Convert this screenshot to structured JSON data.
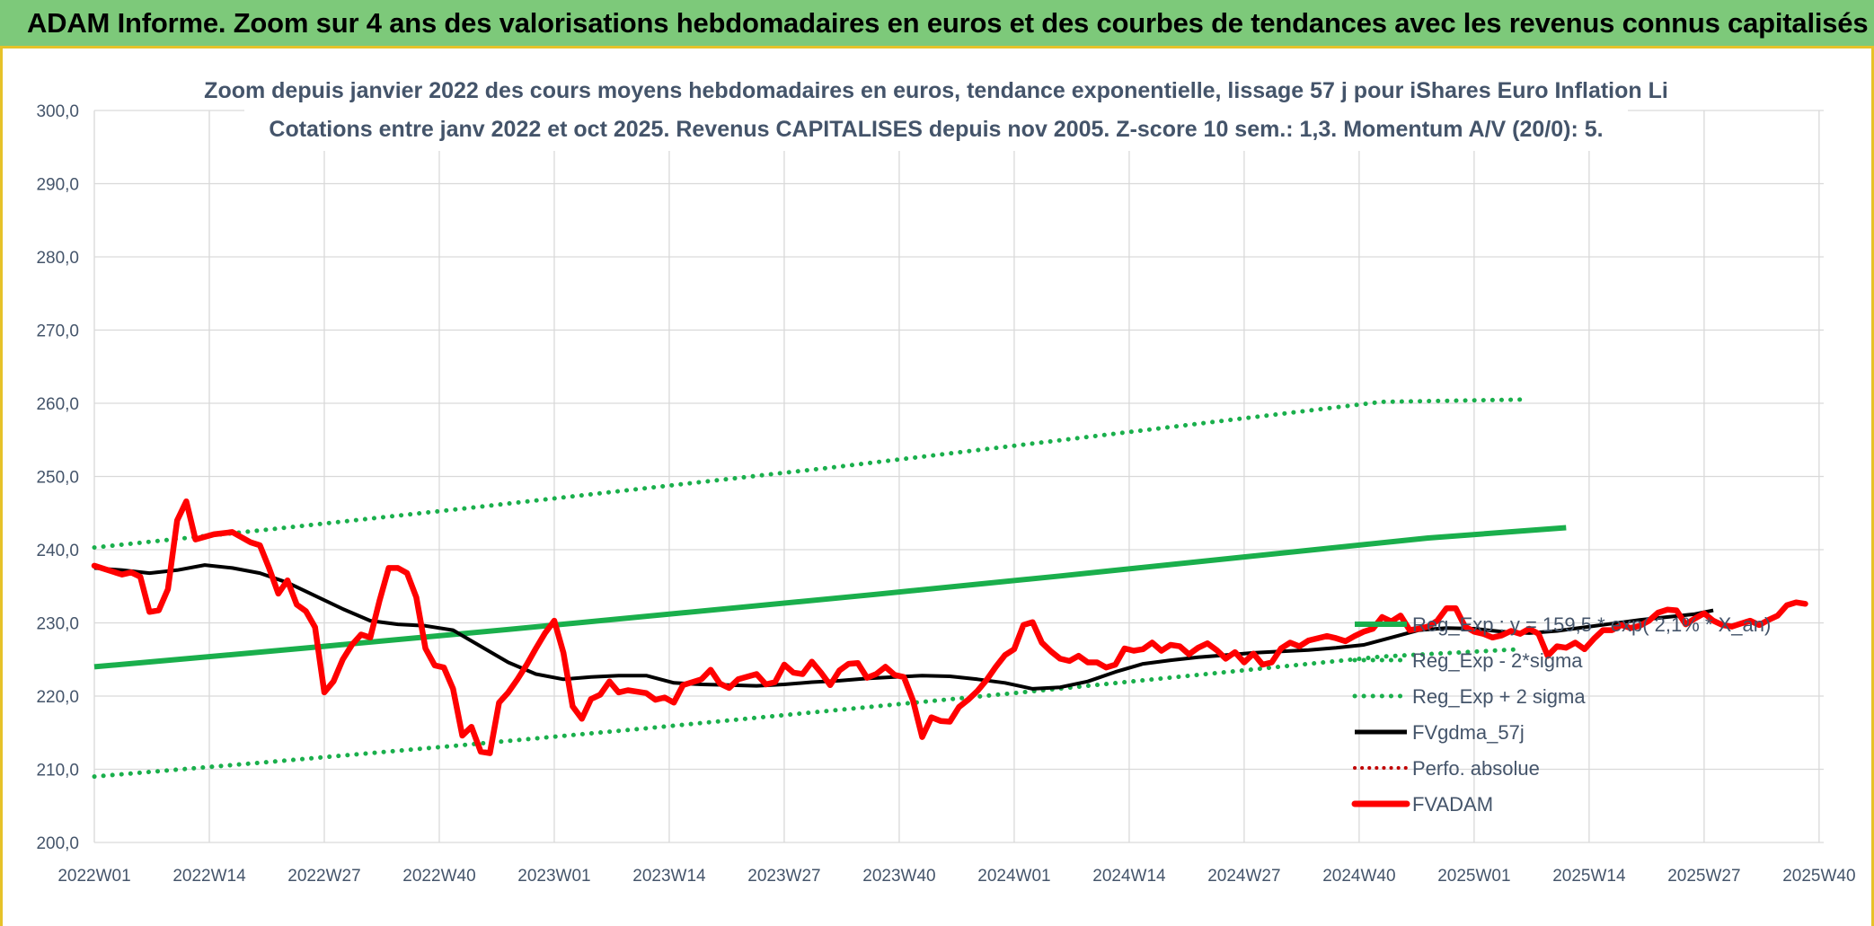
{
  "banner": {
    "title": "ADAM Informe. Zoom sur 4 ans des valorisations hebdomadaires en euros et des courbes de tendances avec les revenus connus capitalisés"
  },
  "colors": {
    "banner_bg": "#7dc97a",
    "frame": "#e6c229",
    "reg_exp": "#1aaf4c",
    "bands": "#1aaf4c",
    "mma": "#000000",
    "fvadam": "#ff0000",
    "perfo": "#c00000",
    "grid": "#d9d9d9",
    "text": "#44546a"
  },
  "chart_data": {
    "type": "line",
    "title": "Zoom depuis janvier 2022 des cours moyens hebdomadaires en euros, tendance exponentielle, lissage 57 j pour iShares Euro Inflation Li",
    "subtitle": "Cotations entre janv 2022 et oct 2025. Revenus CAPITALISES depuis nov 2005. Z-score 10 sem.: 1,3. Momentum A/V (20/0): 5.",
    "xlabel": "",
    "ylabel": "",
    "ylim": [
      200,
      300
    ],
    "yticks": [
      "300,0",
      "290,0",
      "280,0",
      "270,0",
      "260,0",
      "250,0",
      "240,0",
      "230,0",
      "220,0",
      "210,0",
      "200,0"
    ],
    "xticks": [
      "2022W01",
      "2022W14",
      "2022W27",
      "2022W40",
      "2023W01",
      "2023W14",
      "2023W27",
      "2023W40",
      "2024W01",
      "2024W14",
      "2024W27",
      "2024W40",
      "2025W01",
      "2025W14",
      "2025W27",
      "2025W40"
    ],
    "grid": true,
    "legend_position": "right",
    "legend": [
      "Reg_Exp : y = 159,5 * exp( 2,1% * X_an)",
      "Reg_Exp - 2*sigma",
      "Reg_Exp + 2 sigma",
      "FVgdma_57j",
      "Perfo. absolue",
      "FVADAM"
    ],
    "series": [
      {
        "name": "Reg_Exp : y = 159,5 * exp( 2,1% * X_an)",
        "style": "solid-thick",
        "points": [
          [
            0,
            224.0
          ],
          [
            10,
            225.1
          ],
          [
            25,
            226.8
          ],
          [
            45,
            229.1
          ],
          [
            65,
            231.5
          ],
          [
            85,
            233.9
          ],
          [
            105,
            236.4
          ],
          [
            125,
            239.0
          ],
          [
            145,
            241.6
          ],
          [
            160,
            243.0
          ]
        ]
      },
      {
        "name": "Reg_Exp - 2*sigma",
        "style": "dotted",
        "points": [
          [
            0,
            209.0
          ],
          [
            20,
            211.1
          ],
          [
            40,
            213.3
          ],
          [
            60,
            215.6
          ],
          [
            80,
            218.0
          ],
          [
            100,
            220.4
          ],
          [
            120,
            222.9
          ],
          [
            140,
            225.4
          ],
          [
            155,
            226.4
          ]
        ]
      },
      {
        "name": "Reg_Exp + 2 sigma",
        "style": "dotted",
        "points": [
          [
            0,
            240.3
          ],
          [
            20,
            242.9
          ],
          [
            40,
            245.6
          ],
          [
            60,
            248.4
          ],
          [
            80,
            251.2
          ],
          [
            100,
            254.2
          ],
          [
            120,
            257.2
          ],
          [
            140,
            260.2
          ],
          [
            155,
            260.5
          ]
        ]
      },
      {
        "name": "FVgdma_57j",
        "style": "solid",
        "points": [
          [
            0,
            237.5
          ],
          [
            3,
            237.2
          ],
          [
            6,
            236.8
          ],
          [
            9,
            237.2
          ],
          [
            12,
            237.9
          ],
          [
            15,
            237.5
          ],
          [
            18,
            236.8
          ],
          [
            21,
            235.5
          ],
          [
            24,
            233.7
          ],
          [
            27,
            231.9
          ],
          [
            30,
            230.3
          ],
          [
            33,
            229.8
          ],
          [
            36,
            229.6
          ],
          [
            39,
            229.0
          ],
          [
            42,
            226.8
          ],
          [
            45,
            224.6
          ],
          [
            48,
            223.0
          ],
          [
            51,
            222.3
          ],
          [
            54,
            222.6
          ],
          [
            57,
            222.8
          ],
          [
            60,
            222.8
          ],
          [
            63,
            221.8
          ],
          [
            66,
            221.6
          ],
          [
            69,
            221.5
          ],
          [
            72,
            221.4
          ],
          [
            75,
            221.6
          ],
          [
            78,
            221.9
          ],
          [
            81,
            222.1
          ],
          [
            84,
            222.4
          ],
          [
            87,
            222.6
          ],
          [
            90,
            222.8
          ],
          [
            93,
            222.7
          ],
          [
            96,
            222.3
          ],
          [
            99,
            221.8
          ],
          [
            102,
            221.0
          ],
          [
            105,
            221.2
          ],
          [
            108,
            222.0
          ],
          [
            111,
            223.3
          ],
          [
            114,
            224.4
          ],
          [
            117,
            224.9
          ],
          [
            120,
            225.3
          ],
          [
            123,
            225.6
          ],
          [
            126,
            225.9
          ],
          [
            129,
            226.1
          ],
          [
            132,
            226.3
          ],
          [
            135,
            226.6
          ],
          [
            138,
            227.0
          ],
          [
            141,
            228.0
          ],
          [
            144,
            229.0
          ],
          [
            147,
            229.3
          ],
          [
            150,
            229.2
          ],
          [
            153,
            228.8
          ],
          [
            156,
            228.6
          ],
          [
            159,
            228.9
          ],
          [
            162,
            229.4
          ],
          [
            165,
            229.9
          ],
          [
            168,
            230.4
          ],
          [
            171,
            230.8
          ],
          [
            174,
            231.2
          ],
          [
            176,
            231.7
          ]
        ]
      },
      {
        "name": "FVADAM",
        "style": "solid-thick",
        "points": [
          [
            0,
            237.8
          ],
          [
            3,
            236.6
          ],
          [
            4,
            236.9
          ],
          [
            5,
            236.3
          ],
          [
            6,
            231.5
          ],
          [
            7,
            231.7
          ],
          [
            8,
            234.6
          ],
          [
            9,
            244.0
          ],
          [
            10,
            246.6
          ],
          [
            11,
            241.4
          ],
          [
            13,
            242.1
          ],
          [
            15,
            242.4
          ],
          [
            17,
            241.0
          ],
          [
            18,
            240.6
          ],
          [
            19,
            237.5
          ],
          [
            20,
            234.0
          ],
          [
            21,
            235.8
          ],
          [
            22,
            232.5
          ],
          [
            23,
            231.6
          ],
          [
            24,
            229.4
          ],
          [
            25,
            220.5
          ],
          [
            26,
            222.0
          ],
          [
            27,
            225.0
          ],
          [
            28,
            227.0
          ],
          [
            29,
            228.4
          ],
          [
            30,
            228.0
          ],
          [
            31,
            233.0
          ],
          [
            32,
            237.5
          ],
          [
            33,
            237.5
          ],
          [
            34,
            236.8
          ],
          [
            35,
            233.5
          ],
          [
            36,
            226.5
          ],
          [
            37,
            224.2
          ],
          [
            38,
            223.9
          ],
          [
            39,
            221.0
          ],
          [
            40,
            214.6
          ],
          [
            41,
            215.8
          ],
          [
            42,
            212.4
          ],
          [
            43,
            212.2
          ],
          [
            44,
            219.1
          ],
          [
            45,
            220.5
          ],
          [
            46,
            222.3
          ],
          [
            47,
            224.3
          ],
          [
            48,
            226.5
          ],
          [
            49,
            228.6
          ],
          [
            50,
            230.3
          ],
          [
            51,
            225.9
          ],
          [
            52,
            218.6
          ],
          [
            53,
            216.9
          ],
          [
            54,
            219.6
          ],
          [
            55,
            220.2
          ],
          [
            56,
            222.0
          ],
          [
            57,
            220.5
          ],
          [
            58,
            220.8
          ],
          [
            60,
            220.4
          ],
          [
            61,
            219.5
          ],
          [
            62,
            219.8
          ],
          [
            63,
            219.1
          ],
          [
            64,
            221.5
          ],
          [
            66,
            222.3
          ],
          [
            67,
            223.6
          ],
          [
            68,
            221.7
          ],
          [
            69,
            221.1
          ],
          [
            70,
            222.3
          ],
          [
            72,
            223.0
          ],
          [
            73,
            221.6
          ],
          [
            74,
            221.9
          ],
          [
            75,
            224.3
          ],
          [
            76,
            223.2
          ],
          [
            77,
            223.0
          ],
          [
            78,
            224.7
          ],
          [
            79,
            223.2
          ],
          [
            80,
            221.5
          ],
          [
            81,
            223.5
          ],
          [
            82,
            224.4
          ],
          [
            83,
            224.5
          ],
          [
            84,
            222.5
          ],
          [
            85,
            223.0
          ],
          [
            86,
            224.0
          ],
          [
            87,
            222.9
          ],
          [
            88,
            222.6
          ],
          [
            89,
            219.4
          ],
          [
            90,
            214.4
          ],
          [
            91,
            217.1
          ],
          [
            92,
            216.6
          ],
          [
            93,
            216.5
          ],
          [
            94,
            218.5
          ],
          [
            95,
            219.5
          ],
          [
            96,
            220.7
          ],
          [
            97,
            222.2
          ],
          [
            98,
            224.0
          ],
          [
            99,
            225.6
          ],
          [
            100,
            226.4
          ],
          [
            101,
            229.7
          ],
          [
            102,
            230.1
          ],
          [
            103,
            227.3
          ],
          [
            104,
            226.1
          ],
          [
            105,
            225.1
          ],
          [
            106,
            224.8
          ],
          [
            107,
            225.5
          ],
          [
            108,
            224.6
          ],
          [
            109,
            224.6
          ],
          [
            110,
            223.9
          ],
          [
            111,
            224.3
          ],
          [
            112,
            226.5
          ],
          [
            113,
            226.2
          ],
          [
            114,
            226.4
          ],
          [
            115,
            227.3
          ],
          [
            116,
            226.2
          ],
          [
            117,
            227.0
          ],
          [
            118,
            226.8
          ],
          [
            119,
            225.7
          ],
          [
            120,
            226.6
          ],
          [
            121,
            227.2
          ],
          [
            122,
            226.3
          ],
          [
            123,
            225.1
          ],
          [
            124,
            226.0
          ],
          [
            125,
            224.6
          ],
          [
            126,
            225.8
          ],
          [
            127,
            224.3
          ],
          [
            128,
            224.6
          ],
          [
            129,
            226.5
          ],
          [
            130,
            227.3
          ],
          [
            131,
            226.8
          ],
          [
            132,
            227.6
          ],
          [
            134,
            228.2
          ],
          [
            135,
            227.9
          ],
          [
            136,
            227.5
          ],
          [
            137,
            228.2
          ],
          [
            138,
            228.8
          ],
          [
            139,
            229.2
          ],
          [
            140,
            230.8
          ],
          [
            141,
            230.2
          ],
          [
            142,
            231.0
          ],
          [
            143,
            229.0
          ],
          [
            144,
            229.2
          ],
          [
            145,
            229.5
          ],
          [
            146,
            230.3
          ],
          [
            147,
            232.0
          ],
          [
            148,
            232.0
          ],
          [
            149,
            229.5
          ],
          [
            150,
            228.8
          ],
          [
            151,
            228.5
          ],
          [
            152,
            228.0
          ],
          [
            153,
            228.3
          ],
          [
            154,
            228.9
          ],
          [
            155,
            228.5
          ],
          [
            156,
            229.2
          ],
          [
            157,
            228.5
          ],
          [
            158,
            225.5
          ],
          [
            159,
            226.8
          ],
          [
            160,
            226.6
          ],
          [
            161,
            227.3
          ],
          [
            162,
            226.4
          ],
          [
            163,
            227.8
          ],
          [
            164,
            229.0
          ],
          [
            165,
            229.0
          ],
          [
            166,
            229.7
          ],
          [
            167,
            229.3
          ],
          [
            168,
            229.6
          ],
          [
            169,
            230.3
          ],
          [
            170,
            231.4
          ],
          [
            171,
            231.8
          ],
          [
            172,
            231.7
          ],
          [
            173,
            229.8
          ],
          [
            174,
            230.6
          ],
          [
            175,
            231.3
          ],
          [
            176,
            230.3
          ],
          [
            177,
            229.7
          ],
          [
            178,
            229.5
          ],
          [
            179,
            229.9
          ],
          [
            180,
            230.3
          ],
          [
            181,
            229.7
          ],
          [
            182,
            230.4
          ],
          [
            183,
            231.0
          ],
          [
            184,
            232.4
          ],
          [
            185,
            232.8
          ],
          [
            186,
            232.6
          ]
        ]
      }
    ]
  }
}
